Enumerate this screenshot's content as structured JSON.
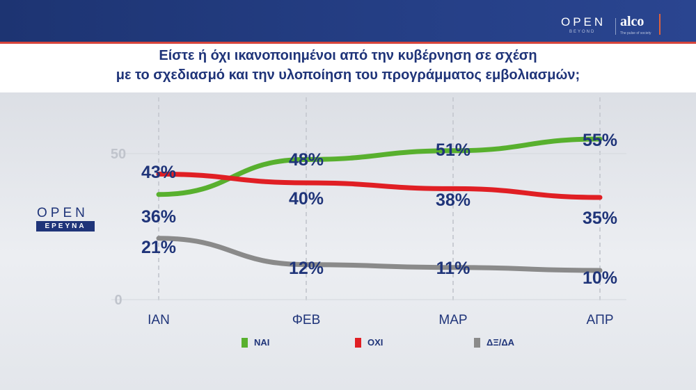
{
  "header": {
    "brand_open": "OPEN",
    "brand_open_sub": "BEYOND",
    "brand_alco": "alco",
    "brand_alco_sub": "The pulse of society"
  },
  "title": {
    "line1": "Είστε ή όχι ικανοποιημένοι από την κυβέρνηση σε σχέση",
    "line2": "με το σχεδιασμό και την υλοποίηση του προγράμματος εμβολιασμών;"
  },
  "side_logo": {
    "open": "OPEN",
    "box": "ΕΡΕΥΝΑ"
  },
  "colors": {
    "nai": "#58b02e",
    "oxi": "#e01f24",
    "dxda": "#8a8a8a",
    "text": "#1f3479"
  },
  "chart_data": {
    "type": "line",
    "title": "Είστε ή όχι ικανοποιημένοι από την κυβέρνηση σε σχέση με το σχεδιασμό και την υλοποίηση του προγράμματος εμβολιασμών;",
    "categories": [
      "ΙΑΝ",
      "ΦΕΒ",
      "ΜΑΡ",
      "ΑΠΡ"
    ],
    "yticks": [
      "0",
      "50"
    ],
    "ylim": [
      0,
      60
    ],
    "legend_position": "bottom",
    "grid": true,
    "series": [
      {
        "name": "ΝΑΙ",
        "color": "#58b02e",
        "values": [
          36,
          48,
          51,
          55
        ],
        "labels": [
          "36%",
          "48%",
          "51%",
          "55%"
        ]
      },
      {
        "name": "ΟΧΙ",
        "color": "#e01f24",
        "values": [
          43,
          40,
          38,
          35
        ],
        "labels": [
          "43%",
          "40%",
          "38%",
          "35%"
        ]
      },
      {
        "name": "ΔΞ/ΔΑ",
        "color": "#8a8a8a",
        "values": [
          21,
          12,
          11,
          10
        ],
        "labels": [
          "21%",
          "12%",
          "11%",
          "10%"
        ]
      }
    ]
  }
}
